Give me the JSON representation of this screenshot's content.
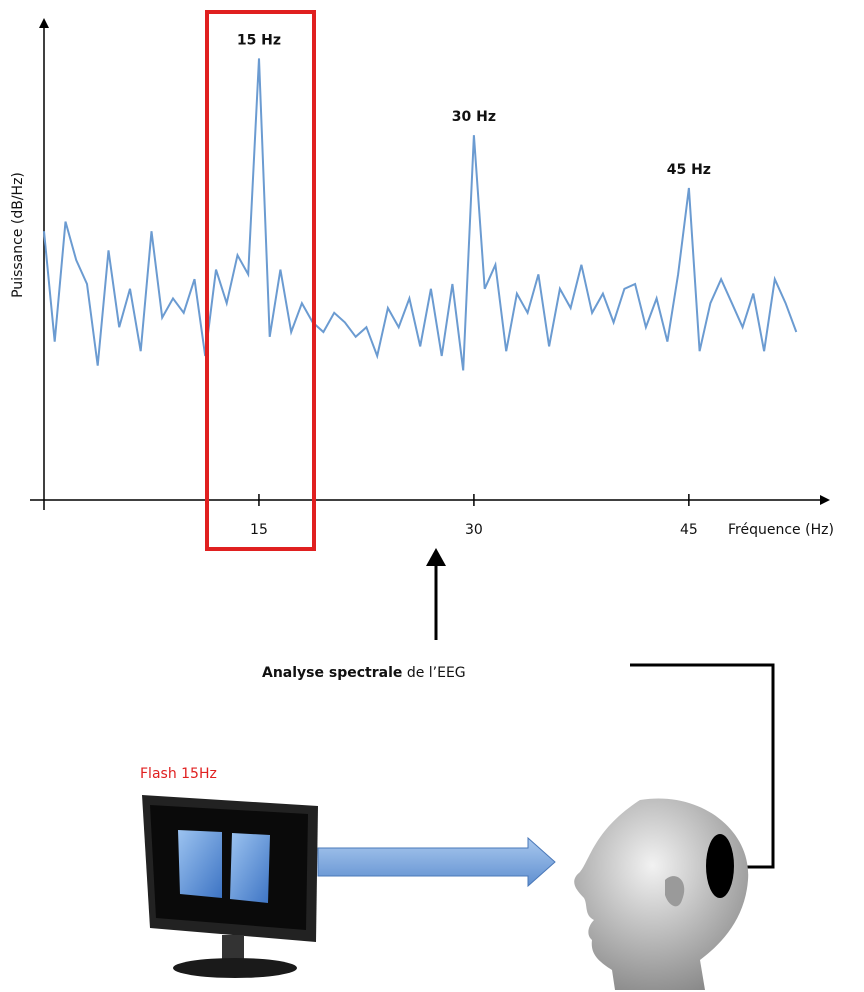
{
  "chart_data": {
    "type": "line",
    "xlabel": "Fréquence (Hz)",
    "ylabel": "Puissance (dB/Hz)",
    "x": [
      0,
      0.75,
      1.5,
      2.25,
      3,
      3.75,
      4.5,
      5.25,
      6,
      6.75,
      7.5,
      8.25,
      9,
      9.75,
      10.5,
      11.25,
      12,
      12.75,
      13.5,
      14.25,
      15,
      15.75,
      16.5,
      17.25,
      18,
      18.75,
      19.5,
      20.25,
      21,
      21.75,
      22.5,
      23.25,
      24,
      24.75,
      25.5,
      26.25,
      27,
      27.75,
      28.5,
      29.25,
      30,
      30.75,
      31.5,
      32.25,
      33,
      33.75,
      34.5,
      35.25,
      36,
      36.75,
      37.5,
      38.25,
      39,
      39.75,
      40.5,
      41.25,
      42,
      42.75,
      43.5,
      44.25,
      45,
      45.75,
      46.5,
      47.25,
      48,
      48.75,
      49.5,
      50.25,
      51,
      51.75,
      52.5
    ],
    "values": [
      56,
      33,
      58,
      50,
      45,
      28,
      52,
      36,
      44,
      31,
      56,
      38,
      42,
      39,
      46,
      30,
      48,
      41,
      51,
      47,
      92,
      34,
      48,
      35,
      41,
      37,
      35,
      39,
      37,
      34,
      36,
      30,
      40,
      36,
      42,
      32,
      44,
      30,
      45,
      27,
      76,
      44,
      49,
      31,
      43,
      39,
      47,
      32,
      44,
      40,
      49,
      39,
      43,
      37,
      44,
      45,
      36,
      42,
      33,
      47,
      65,
      31,
      41,
      46,
      41,
      36,
      43,
      31,
      46,
      41,
      35
    ],
    "color": "#6b9bd1",
    "xlim": [
      0,
      54.5
    ],
    "ylim": [
      0,
      100
    ],
    "xticks": [
      15,
      30,
      45
    ],
    "annotations": [
      {
        "text": "15 Hz",
        "x": 15,
        "y": 92
      },
      {
        "text": "30 Hz",
        "x": 30,
        "y": 76
      },
      {
        "text": "45 Hz",
        "x": 45,
        "y": 65
      }
    ]
  },
  "diagram": {
    "caption_bold": "Analyse spectrale",
    "caption_rest": "de l’EEG",
    "flash_label": "Flash 15Hz"
  }
}
